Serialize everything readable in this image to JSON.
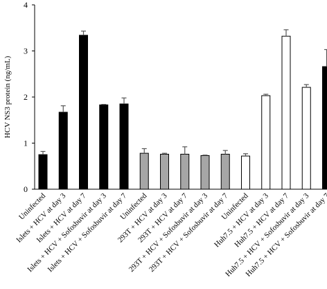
{
  "chart_data": {
    "type": "bar",
    "title": "",
    "xlabel": "",
    "ylabel": "HCV NS3 protein (ng/mL)",
    "ylim": [
      0,
      4
    ],
    "yticks": [
      0,
      1,
      2,
      3,
      4
    ],
    "grid": false,
    "legend": "none",
    "categories": [
      "Uninfected",
      "Islets + HCV at day 3",
      "Islets + HCV at day 7",
      "Islets + HCV + Sofosbuvir at day 3",
      "Islets + HCV + Sofosbuvir at day 7",
      "Uninfected",
      "293T + HCV at day 3",
      "293T + HCV at day 7",
      "293T + HCV + Sofosbuvir at day 3",
      "293T + HCV + Sofosbuvir at day 7",
      "Uninfected",
      "Huh7.5 + HCV at day 3",
      "Huh7.5 + HCV at day 7",
      "Huh7.5 + HCV + Sofosbuvir at day 3",
      "Huh7.5 + HCV + Sofosbuvir at day 7"
    ],
    "values": [
      0.75,
      1.67,
      3.34,
      1.83,
      1.85,
      0.78,
      0.76,
      0.76,
      0.73,
      0.76,
      0.72,
      2.03,
      3.32,
      2.21,
      2.66
    ],
    "errors": [
      0.07,
      0.14,
      0.09,
      0.01,
      0.13,
      0.1,
      0.02,
      0.16,
      0.01,
      0.08,
      0.05,
      0.03,
      0.14,
      0.06,
      0.37
    ],
    "bar_colors": [
      "#000000",
      "#000000",
      "#000000",
      "#000000",
      "#000000",
      "#a6a6a6",
      "#a6a6a6",
      "#a6a6a6",
      "#a6a6a6",
      "#a6a6a6",
      "#ffffff",
      "#ffffff",
      "#ffffff",
      "#ffffff",
      "#000000"
    ],
    "bar_outline": "#000000"
  }
}
